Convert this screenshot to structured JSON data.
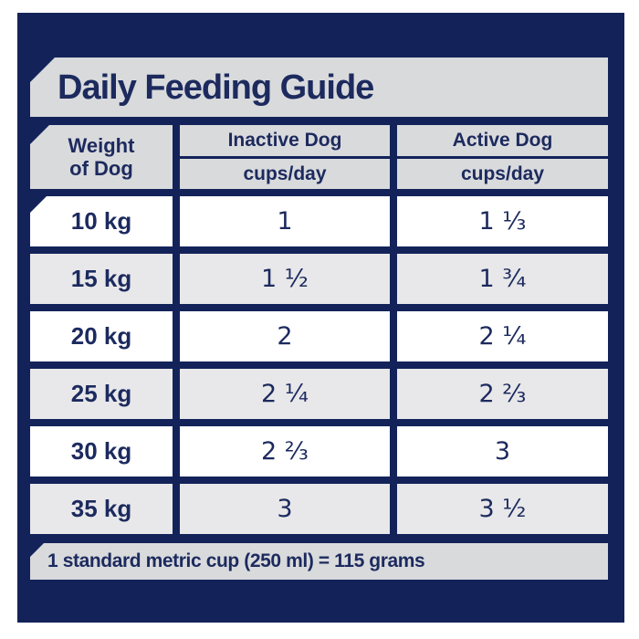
{
  "colors": {
    "navy": "#13235a",
    "bar-gray": "#d9dadc",
    "row-gray": "#e8e8ea",
    "row-white": "#ffffff",
    "text": "#1c2a5e"
  },
  "title": "Daily Feeding Guide",
  "table": {
    "weight_header": {
      "line1": "Weight",
      "line2": "of Dog"
    },
    "columns": [
      {
        "label": "Inactive Dog",
        "unit": "cups/day"
      },
      {
        "label": "Active Dog",
        "unit": "cups/day"
      }
    ],
    "rows": [
      {
        "weight": "10 kg",
        "inactive": "1",
        "active": "1 ⅓"
      },
      {
        "weight": "15 kg",
        "inactive": "1 ½",
        "active": "1 ¾"
      },
      {
        "weight": "20 kg",
        "inactive": "2",
        "active": "2 ¼"
      },
      {
        "weight": "25 kg",
        "inactive": "2 ¼",
        "active": "2 ⅔"
      },
      {
        "weight": "30 kg",
        "inactive": "2 ⅔",
        "active": "3"
      },
      {
        "weight": "35 kg",
        "inactive": "3",
        "active": "3 ½"
      }
    ]
  },
  "footnote": "1 standard metric cup (250 ml) = 115 grams"
}
